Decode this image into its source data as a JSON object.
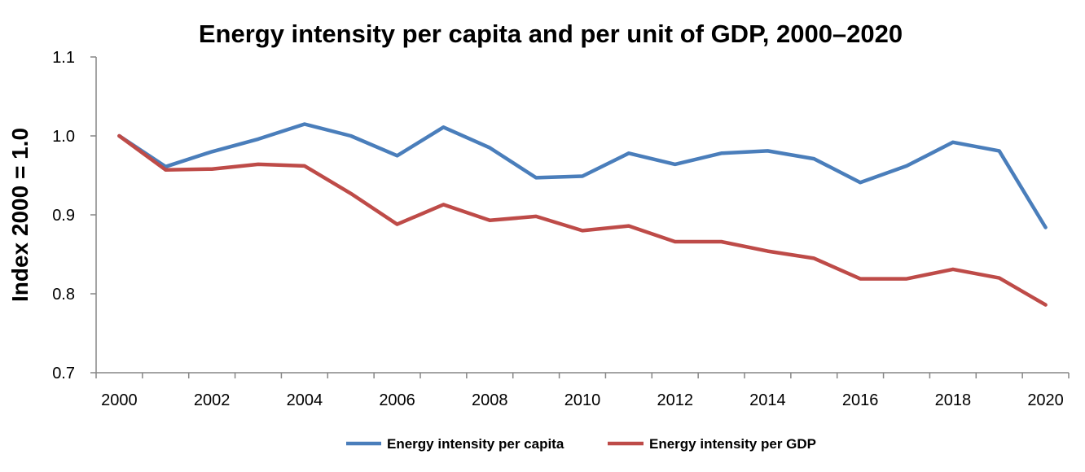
{
  "chart_data": {
    "type": "line",
    "title": "Energy intensity per capita and per unit of GDP, 2000–2020",
    "xlabel": "",
    "ylabel": "Index 2000 = 1.0",
    "ylim": [
      0.7,
      1.1
    ],
    "yticks": [
      "0.7",
      "0.8",
      "0.9",
      "1.0",
      "1.1"
    ],
    "xticks": [
      "2000",
      "2002",
      "2004",
      "2006",
      "2008",
      "2010",
      "2012",
      "2014",
      "2016",
      "2018",
      "2020"
    ],
    "x": [
      2000,
      2001,
      2002,
      2003,
      2004,
      2005,
      2006,
      2007,
      2008,
      2009,
      2010,
      2011,
      2012,
      2013,
      2014,
      2015,
      2016,
      2017,
      2018,
      2019,
      2020
    ],
    "grid": false,
    "legend_position": "bottom",
    "series": [
      {
        "name": "Energy intensity per capita",
        "color": "#4a7ebb",
        "values": [
          1.0,
          0.961,
          0.98,
          0.996,
          1.015,
          1.0,
          0.975,
          1.011,
          0.985,
          0.947,
          0.949,
          0.978,
          0.964,
          0.978,
          0.981,
          0.971,
          0.941,
          0.962,
          0.992,
          0.981,
          0.884
        ]
      },
      {
        "name": "Energy intensity per GDP",
        "color": "#be4b48",
        "values": [
          1.0,
          0.957,
          0.958,
          0.964,
          0.962,
          0.927,
          0.888,
          0.913,
          0.893,
          0.898,
          0.88,
          0.886,
          0.866,
          0.866,
          0.854,
          0.845,
          0.819,
          0.819,
          0.831,
          0.82,
          0.786
        ]
      }
    ]
  }
}
